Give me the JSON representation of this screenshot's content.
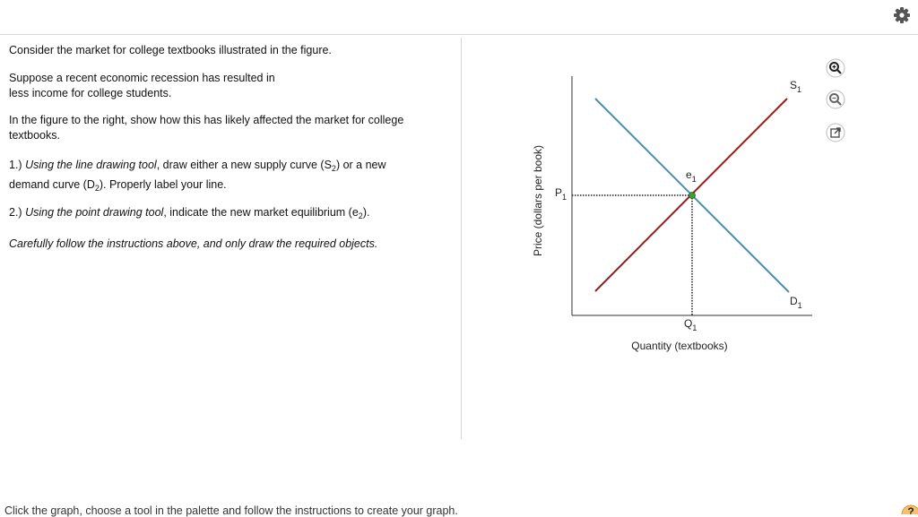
{
  "question": {
    "intro": "Consider the market for college textbooks illustrated in the figure.",
    "scenario": [
      "Suppose a recent economic recession has resulted in",
      "less income for college students."
    ],
    "task": [
      "In the figure to the right, show how this has likely affected the market for college",
      "textbooks."
    ],
    "step_1": [
      "1.) ",
      "Using the line drawing tool",
      ", draw either a new supply curve (S",
      "2",
      ") or a new",
      "demand curve (D",
      "2",
      ").  Properly label your line."
    ],
    "step_2": [
      "2.) ",
      "Using the point drawing tool",
      ", indicate the new market equilibrium (e",
      "2",
      ")."
    ],
    "note": "Carefully follow the instructions above, and only draw the required objects."
  },
  "graph": {
    "y_axis_label": "Price (dollars per book)",
    "x_axis_label": "Quantity (textbooks)",
    "supply_label": {
      "letter": "S",
      "sub": "1"
    },
    "demand_label": {
      "letter": "D",
      "sub": "1"
    },
    "equilibrium_label": {
      "letter": "e",
      "sub": "1"
    },
    "price_label": {
      "letter": "P",
      "sub": "1"
    },
    "quantity_label": {
      "letter": "Q",
      "sub": "1"
    }
  },
  "footer": {
    "instructions": "Click the graph, choose a tool in the palette and follow the instructions to create your graph.",
    "help_icon": "?"
  }
}
